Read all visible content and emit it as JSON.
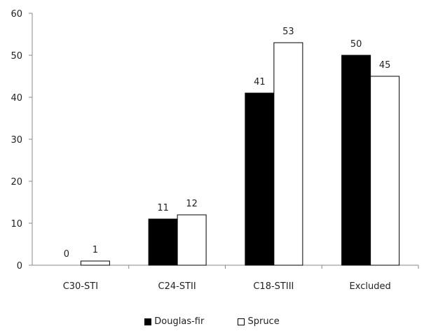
{
  "chart_data": {
    "type": "bar",
    "categories": [
      "C30-STI",
      "C24-STII",
      "C18-STIII",
      "Excluded"
    ],
    "series": [
      {
        "name": "Douglas-fir",
        "values": [
          0,
          11,
          41,
          50
        ],
        "color": "#000000"
      },
      {
        "name": "Spruce",
        "values": [
          1,
          12,
          53,
          45
        ],
        "color": "#ffffff"
      }
    ],
    "ylim": [
      0,
      60
    ],
    "yticks": [
      0,
      10,
      20,
      30,
      40,
      50,
      60
    ],
    "legend_position": "bottom",
    "grid": false
  }
}
